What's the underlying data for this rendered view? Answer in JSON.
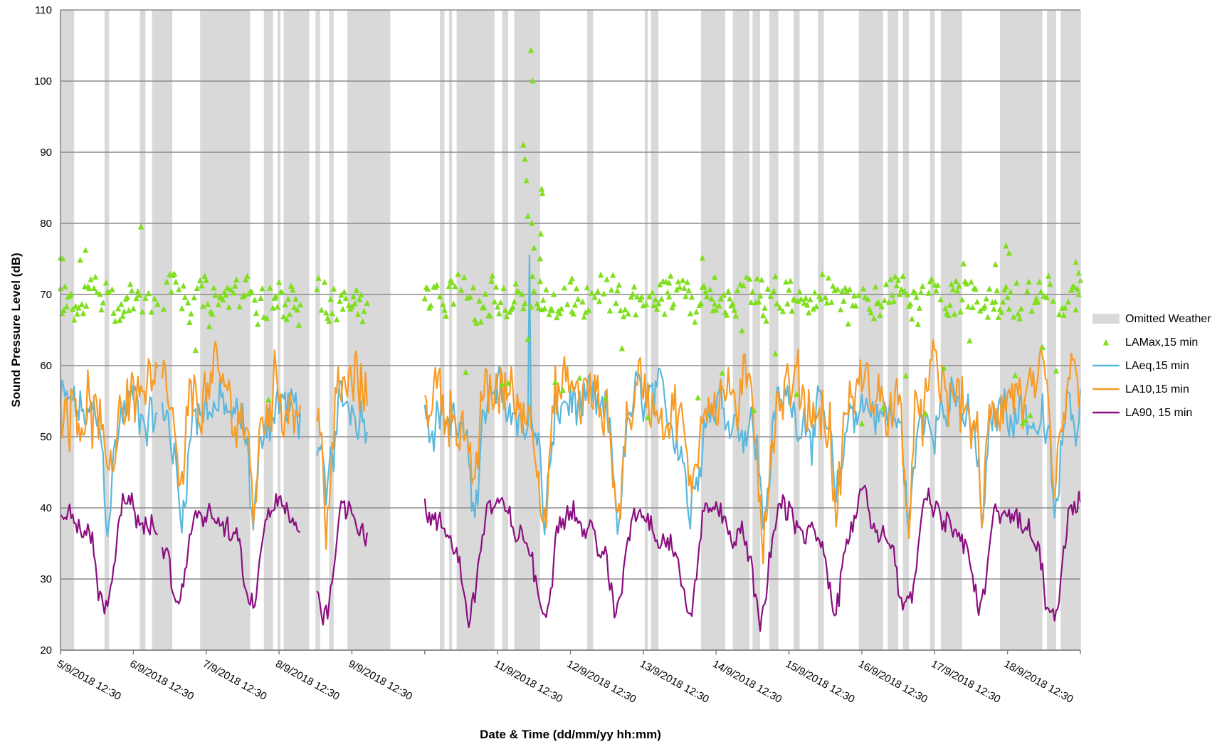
{
  "chart_data": {
    "type": "line",
    "title": "",
    "xlabel": "Date & Time (dd/mm/yy hh:mm)",
    "ylabel": "Sound Pressure Level (dB)",
    "x_scale": "date",
    "xlim": [
      "2018-09-05T12:30",
      "2018-09-19T12:30"
    ],
    "ylim": [
      20,
      110
    ],
    "y_ticks": [
      20,
      30,
      40,
      50,
      60,
      70,
      80,
      90,
      100,
      110
    ],
    "x_ticks": [
      {
        "date": "2018-09-05T12:30",
        "label": "5/9/2018 12:30"
      },
      {
        "date": "2018-09-06T12:30",
        "label": "6/9/2018 12:30"
      },
      {
        "date": "2018-09-07T12:30",
        "label": "7/9/2018 12:30"
      },
      {
        "date": "2018-09-08T12:30",
        "label": "8/9/2018 12:30"
      },
      {
        "date": "2018-09-09T12:30",
        "label": "9/9/2018 12:30"
      },
      {
        "date": "2018-09-10T12:30",
        "label": ""
      },
      {
        "date": "2018-09-11T12:30",
        "label": "11/9/2018 12:30"
      },
      {
        "date": "2018-09-12T12:30",
        "label": "12/9/2018 12:30"
      },
      {
        "date": "2018-09-13T12:30",
        "label": "13/9/2018 12:30"
      },
      {
        "date": "2018-09-14T12:30",
        "label": "14/9/2018 12:30"
      },
      {
        "date": "2018-09-15T12:30",
        "label": "15/9/2018 12:30"
      },
      {
        "date": "2018-09-16T12:30",
        "label": "16/9/2018 12:30"
      },
      {
        "date": "2018-09-17T12:30",
        "label": "17/9/2018 12:30"
      },
      {
        "date": "2018-09-18T12:30",
        "label": "18/9/2018 12:30"
      },
      {
        "date": "2018-09-19T12:30",
        "label": ""
      }
    ],
    "grid": true,
    "legend_position": "right",
    "legend": [
      {
        "name": "Omitted Weather",
        "kind": "band",
        "color": "#d9d9d9"
      },
      {
        "name": "LAMax,15 min",
        "kind": "marker",
        "color": "#7fdf1f"
      },
      {
        "name": "LAeq,15 min",
        "kind": "line",
        "color": "#5bb8dc"
      },
      {
        "name": "LA10,15 min",
        "kind": "line",
        "color": "#f79b26"
      },
      {
        "name": "LA90, 15 min",
        "kind": "line",
        "color": "#8b0e80"
      }
    ],
    "omitted_weather": [
      [
        "2018-09-05T12:30",
        "2018-09-05T17:00"
      ],
      [
        "2018-09-06T03:00",
        "2018-09-06T04:30"
      ],
      [
        "2018-09-06T14:40",
        "2018-09-06T16:30"
      ],
      [
        "2018-09-06T18:40",
        "2018-09-07T01:20"
      ],
      [
        "2018-09-07T10:30",
        "2018-09-08T03:00"
      ],
      [
        "2018-09-08T07:30",
        "2018-09-08T10:30"
      ],
      [
        "2018-09-08T12:00",
        "2018-09-08T13:00"
      ],
      [
        "2018-09-08T14:00",
        "2018-09-08T22:30"
      ],
      [
        "2018-09-09T00:30",
        "2018-09-09T02:00"
      ],
      [
        "2018-09-09T05:00",
        "2018-09-09T06:30"
      ],
      [
        "2018-09-09T11:00",
        "2018-09-10T01:10"
      ],
      [
        "2018-09-10T17:30",
        "2018-09-10T19:00"
      ],
      [
        "2018-09-10T20:30",
        "2018-09-10T21:30"
      ],
      [
        "2018-09-10T23:00",
        "2018-09-11T11:30"
      ],
      [
        "2018-09-11T14:00",
        "2018-09-11T16:00"
      ],
      [
        "2018-09-11T18:00",
        "2018-09-12T02:30"
      ],
      [
        "2018-09-12T18:00",
        "2018-09-12T20:00"
      ],
      [
        "2018-09-13T13:00",
        "2018-09-13T14:00"
      ],
      [
        "2018-09-13T15:00",
        "2018-09-13T17:30"
      ],
      [
        "2018-09-14T07:30",
        "2018-09-14T15:30"
      ],
      [
        "2018-09-14T18:00",
        "2018-09-14T23:30"
      ],
      [
        "2018-09-15T00:30",
        "2018-09-15T03:00"
      ],
      [
        "2018-09-15T06:00",
        "2018-09-15T09:00"
      ],
      [
        "2018-09-15T14:00",
        "2018-09-15T16:00"
      ],
      [
        "2018-09-15T22:00",
        "2018-09-16T00:00"
      ],
      [
        "2018-09-16T11:30",
        "2018-09-16T19:30"
      ],
      [
        "2018-09-16T21:00",
        "2018-09-17T00:30"
      ],
      [
        "2018-09-17T02:00",
        "2018-09-17T04:00"
      ],
      [
        "2018-09-17T11:00",
        "2018-09-17T12:30"
      ],
      [
        "2018-09-17T14:30",
        "2018-09-17T21:30"
      ],
      [
        "2018-09-18T10:00",
        "2018-09-19T00:00"
      ],
      [
        "2018-09-19T01:30",
        "2018-09-19T04:30"
      ],
      [
        "2018-09-19T06:00",
        "2018-09-19T12:30"
      ]
    ],
    "gaps": [
      [
        "2018-09-06T21:00",
        "2018-09-06T21:45"
      ],
      [
        "2018-09-08T20:00",
        "2018-09-09T01:00"
      ],
      [
        "2018-09-09T18:00",
        "2018-09-10T12:30"
      ]
    ],
    "series": [
      {
        "name": "LAMax,15 min",
        "type": "scatter",
        "color": "#7fdf1f",
        "profile": [
          [
            0,
            71
          ],
          [
            3,
            70
          ],
          [
            6,
            68
          ],
          [
            9,
            69
          ],
          [
            12,
            70
          ],
          [
            15,
            69
          ],
          [
            18,
            69
          ],
          [
            21,
            70
          ],
          [
            24,
            71
          ]
        ],
        "spread": 2.6,
        "extra_points": [
          [
            "2018-09-05T12:30",
            75.1
          ],
          [
            "2018-09-05T13:15",
            75.0
          ],
          [
            "2018-09-05T19:00",
            74.8
          ],
          [
            "2018-09-05T20:45",
            76.2
          ],
          [
            "2018-09-06T15:00",
            79.5
          ],
          [
            "2018-09-11T10:45",
            72.6
          ],
          [
            "2018-09-11T23:30",
            104.3
          ],
          [
            "2018-09-11T21:00",
            91.0
          ],
          [
            "2018-09-11T21:30",
            89.0
          ],
          [
            "2018-09-11T22:00",
            86.0
          ],
          [
            "2018-09-11T22:30",
            81.0
          ],
          [
            "2018-09-12T00:00",
            100.0
          ],
          [
            "2018-09-11T23:45",
            80.0
          ],
          [
            "2018-09-12T00:30",
            76.5
          ],
          [
            "2018-09-12T02:30",
            75.0
          ],
          [
            "2018-09-12T02:45",
            78.5
          ],
          [
            "2018-09-12T03:00",
            84.8
          ],
          [
            "2018-09-12T03:15",
            84.2
          ],
          [
            "2018-09-12T13:00",
            72.2
          ],
          [
            "2018-09-13T21:00",
            71.6
          ],
          [
            "2018-09-14T08:00",
            75.1
          ],
          [
            "2018-09-14T12:00",
            72.4
          ],
          [
            "2018-09-15T08:00",
            72.5
          ],
          [
            "2018-09-17T11:00",
            71.8
          ],
          [
            "2018-09-17T22:00",
            74.3
          ],
          [
            "2018-09-18T08:30",
            74.2
          ],
          [
            "2018-09-18T12:00",
            76.8
          ],
          [
            "2018-09-18T13:00",
            75.8
          ],
          [
            "2018-09-19T11:00",
            74.5
          ],
          [
            "2018-09-19T12:00",
            73.0
          ]
        ]
      },
      {
        "name": "LAeq,15 min",
        "type": "line",
        "color": "#5bb8dc",
        "profile": [
          [
            0,
            52
          ],
          [
            2,
            48
          ],
          [
            4,
            38
          ],
          [
            6,
            46
          ],
          [
            8,
            53
          ],
          [
            12,
            55
          ],
          [
            16,
            54
          ],
          [
            20,
            53
          ],
          [
            22,
            52
          ],
          [
            24,
            52
          ]
        ],
        "spike": [
          "2018-09-11T23:00",
          75.5
        ]
      },
      {
        "name": "LA10,15 min",
        "type": "line",
        "color": "#f79b26",
        "profile": [
          [
            0,
            54
          ],
          [
            2,
            50
          ],
          [
            4,
            38
          ],
          [
            6,
            48
          ],
          [
            8,
            55
          ],
          [
            12,
            57
          ],
          [
            16,
            56
          ],
          [
            20,
            55
          ],
          [
            22,
            54
          ],
          [
            24,
            54
          ]
        ]
      },
      {
        "name": "LA90, 15 min",
        "type": "line",
        "color": "#8b0e80",
        "profile": [
          [
            0,
            33
          ],
          [
            1,
            29
          ],
          [
            3,
            25
          ],
          [
            5,
            27
          ],
          [
            7,
            35
          ],
          [
            9,
            40
          ],
          [
            13,
            40
          ],
          [
            17,
            37
          ],
          [
            21,
            36
          ],
          [
            24,
            33
          ]
        ]
      }
    ]
  }
}
